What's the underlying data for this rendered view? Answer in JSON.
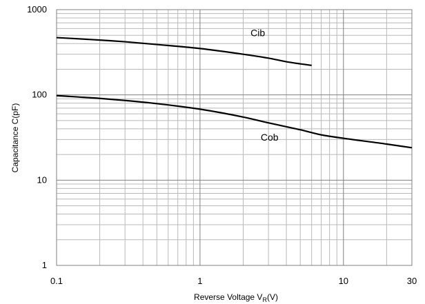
{
  "chart_data": {
    "type": "line",
    "x_scale": "log",
    "y_scale": "log",
    "xlim": [
      0.1,
      30
    ],
    "ylim": [
      1,
      1000
    ],
    "xlabel": "Reverse Voltage  V",
    "xlabel_subscript": "R",
    "xlabel_unit": "(V)",
    "ylabel": "Capacitance  C(pF)",
    "x_ticks": [
      0.1,
      1,
      10,
      30
    ],
    "x_tick_labels": [
      "0.1",
      "1",
      "10",
      "30"
    ],
    "y_ticks": [
      1,
      10,
      100,
      1000
    ],
    "y_tick_labels": [
      "1",
      "10",
      "100",
      "1000"
    ],
    "grid": true,
    "series": [
      {
        "name": "Cib",
        "x": [
          0.1,
          0.2,
          0.3,
          0.5,
          1,
          2,
          3,
          4,
          6
        ],
        "values": [
          470,
          440,
          420,
          390,
          350,
          300,
          270,
          245,
          222
        ]
      },
      {
        "name": "Cob",
        "x": [
          0.1,
          0.2,
          0.3,
          0.5,
          1,
          2,
          3,
          5,
          7,
          10,
          20,
          30
        ],
        "values": [
          98,
          91,
          86,
          79,
          68,
          55,
          47,
          39,
          34,
          31,
          26.5,
          24
        ]
      }
    ],
    "colors": {
      "line": "#000000",
      "major_grid": "#7f7f7f",
      "minor_grid": "#b8b8b8",
      "frame": "#7f7f7f"
    }
  }
}
